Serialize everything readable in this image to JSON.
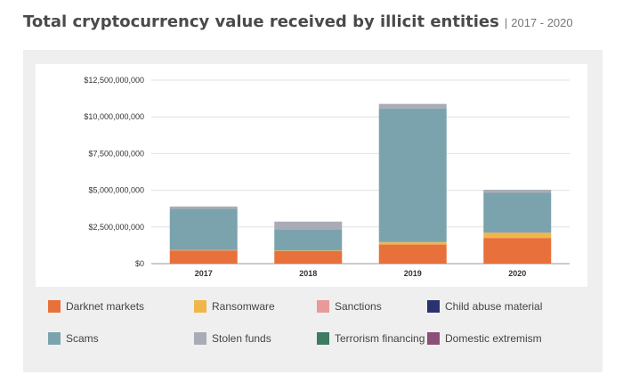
{
  "header": {
    "title": "Total cryptocurrency value received by illicit entities",
    "separator": "|",
    "subtitle": "2017 - 2020"
  },
  "chart_data": {
    "type": "bar",
    "stacked": true,
    "categories": [
      "2017",
      "2018",
      "2019",
      "2020"
    ],
    "ylim": [
      0,
      12500000000
    ],
    "yticks": [
      0,
      2500000000,
      5000000000,
      7500000000,
      10000000000,
      12500000000
    ],
    "ytick_labels": [
      "$0",
      "$2,500,000,000",
      "$5,000,000,000",
      "$7,500,000,000",
      "$10,000,000,000",
      "$12,500,000,000"
    ],
    "grid": true,
    "legend_position": "bottom",
    "series": [
      {
        "name": "Darknet markets",
        "color": "#e8703a",
        "values": [
          900000000,
          850000000,
          1300000000,
          1750000000
        ]
      },
      {
        "name": "Ransomware",
        "color": "#f0b64a",
        "values": [
          20000000,
          40000000,
          150000000,
          350000000
        ]
      },
      {
        "name": "Sanctions",
        "color": "#e89a9a",
        "values": [
          10000000,
          10000000,
          20000000,
          20000000
        ]
      },
      {
        "name": "Child abuse material",
        "color": "#2b3270",
        "values": [
          5000000,
          5000000,
          5000000,
          5000000
        ]
      },
      {
        "name": "Scams",
        "color": "#7ba3ad",
        "values": [
          2800000000,
          1400000000,
          9100000000,
          2700000000
        ]
      },
      {
        "name": "Stolen funds",
        "color": "#a9acb6",
        "values": [
          150000000,
          550000000,
          300000000,
          200000000
        ]
      },
      {
        "name": "Terrorism financing",
        "color": "#3f7a62",
        "values": [
          5000000,
          5000000,
          5000000,
          5000000
        ]
      },
      {
        "name": "Domestic extremism",
        "color": "#8c4f78",
        "values": [
          1000000,
          1000000,
          1000000,
          1000000
        ]
      }
    ]
  }
}
